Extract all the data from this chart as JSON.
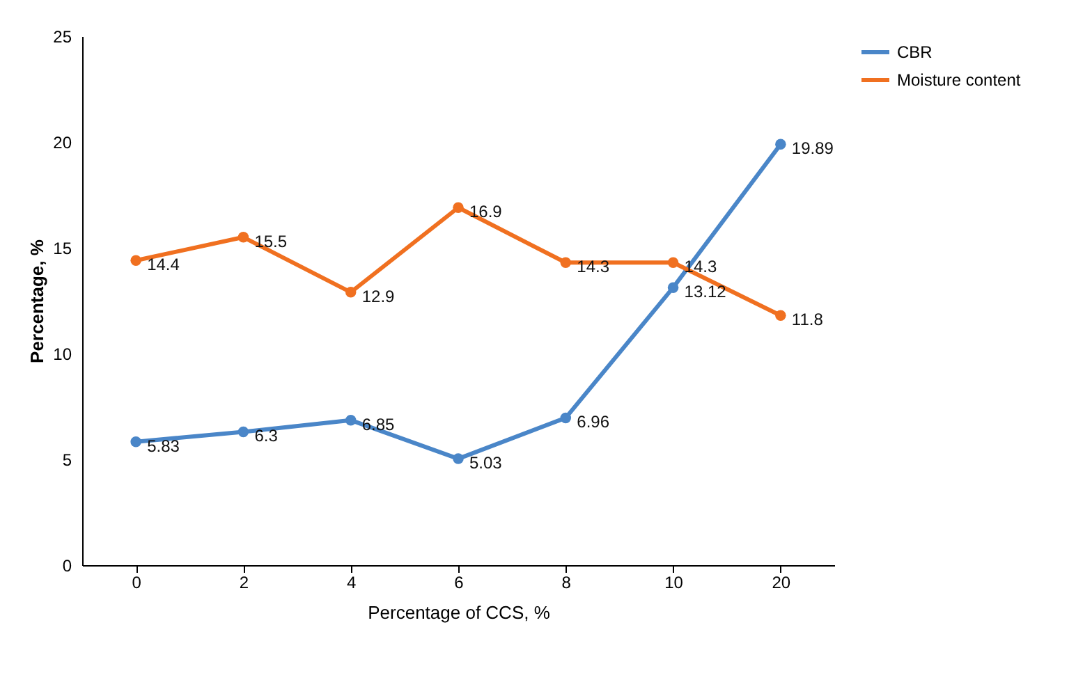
{
  "chart_data": {
    "type": "line",
    "xlabel": "Percentage of CCS, %",
    "ylabel": "Percentage, %",
    "categories": [
      "0",
      "2",
      "4",
      "6",
      "8",
      "10",
      "20"
    ],
    "series": [
      {
        "name": "CBR",
        "color": "#4a86c8",
        "values": [
          5.83,
          6.3,
          6.85,
          5.03,
          6.96,
          13.12,
          19.89
        ]
      },
      {
        "name": "Moisture content",
        "color": "#f07020",
        "values": [
          14.4,
          15.5,
          12.9,
          16.9,
          14.3,
          14.3,
          11.8
        ]
      }
    ],
    "ylim": [
      0,
      25
    ],
    "yticks": [
      0,
      5,
      10,
      15,
      20,
      25
    ],
    "legend": "right",
    "marker": "circle",
    "data_labels": true
  }
}
